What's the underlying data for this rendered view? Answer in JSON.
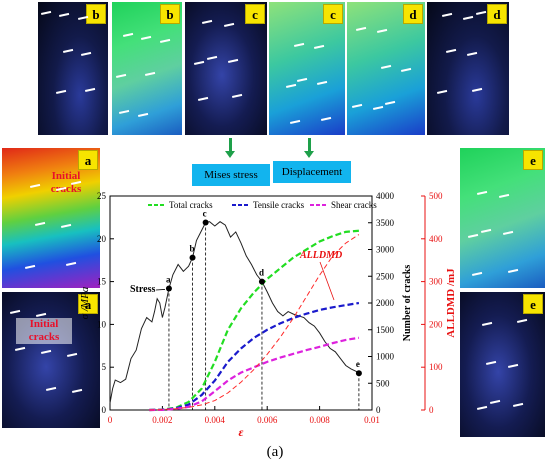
{
  "panels": {
    "top": [
      "b",
      "b",
      "c",
      "c",
      "d",
      "d"
    ],
    "left": [
      "a",
      "a"
    ],
    "right": [
      "e",
      "e"
    ]
  },
  "labels": {
    "mises": "Mises stress",
    "displacement": "Displacement",
    "initial_cracks": [
      "Initial",
      "cracks"
    ]
  },
  "caption": "(a)",
  "chart_data": {
    "type": "line",
    "xlabel": "ε",
    "ylabel": "σ /MPa",
    "y2label": "Number of cracks",
    "y3label": "ALLDMD /mJ",
    "xlim": [
      0,
      0.01
    ],
    "ylim": [
      0,
      25
    ],
    "y2lim": [
      0,
      4000
    ],
    "y3lim": [
      0,
      500
    ],
    "xticks": [
      "0",
      "0.002",
      "0.004",
      "0.006",
      "0.008",
      "0.01"
    ],
    "yticks": [
      "0",
      "5",
      "10",
      "15",
      "20",
      "25"
    ],
    "y2ticks": [
      "0",
      "500",
      "1000",
      "1500",
      "2000",
      "2500",
      "3000",
      "3500",
      "4000"
    ],
    "y3ticks": [
      "0",
      "100",
      "200",
      "300",
      "400",
      "500"
    ],
    "legend": [
      "Total cracks",
      "Tensile cracks",
      "Shear cracks"
    ],
    "stress_label": "Stress",
    "alldmd_label": "ALLDMD",
    "colors": {
      "stress": "#222222",
      "total": "#22dd22",
      "tensile": "#1a1acc",
      "shear": "#dd22dd",
      "alldmd": "#ff2a2a"
    },
    "series": [
      {
        "name": "Stress",
        "axis": "left",
        "x": [
          0,
          0.0001,
          0.0002,
          0.0004,
          0.0006,
          0.0008,
          0.001,
          0.0012,
          0.0014,
          0.0016,
          0.0017,
          0.0018,
          0.0019,
          0.002,
          0.0021,
          0.00225,
          0.0024,
          0.0026,
          0.0028,
          0.003,
          0.00315,
          0.0033,
          0.0035,
          0.00365,
          0.0038,
          0.004,
          0.0042,
          0.0044,
          0.0046,
          0.0048,
          0.005,
          0.0052,
          0.0054,
          0.0056,
          0.0058,
          0.006,
          0.0062,
          0.0064,
          0.0066,
          0.0068,
          0.007,
          0.0072,
          0.0074,
          0.0076,
          0.0078,
          0.008,
          0.0082,
          0.0084,
          0.0086,
          0.0088,
          0.009,
          0.0092,
          0.0094,
          0.0095
        ],
        "y": [
          0.8,
          2.5,
          3.5,
          3.2,
          3.6,
          6.0,
          7.0,
          9.5,
          10.8,
          10.3,
          11.5,
          13.0,
          12.5,
          10.8,
          12.0,
          14.2,
          15.8,
          17.0,
          16.2,
          16.8,
          17.8,
          19.8,
          21.0,
          21.9,
          22.0,
          21.5,
          22.0,
          21.6,
          20.2,
          20.8,
          19.5,
          18.0,
          17.0,
          15.8,
          15.0,
          13.8,
          12.5,
          11.5,
          11.0,
          11.5,
          11.2,
          11.0,
          10.8,
          10.2,
          9.8,
          9.0,
          8.0,
          7.2,
          6.8,
          6.0,
          5.2,
          4.8,
          4.5,
          4.3
        ]
      },
      {
        "name": "Total cracks",
        "axis": "right",
        "x": [
          0.0015,
          0.002,
          0.0025,
          0.003,
          0.0035,
          0.004,
          0.0045,
          0.005,
          0.0055,
          0.006,
          0.0065,
          0.007,
          0.0075,
          0.008,
          0.0085,
          0.009,
          0.0095
        ],
        "y": [
          0,
          10,
          40,
          150,
          400,
          900,
          1500,
          1900,
          2200,
          2450,
          2650,
          2850,
          3000,
          3150,
          3250,
          3330,
          3350
        ]
      },
      {
        "name": "Tensile cracks",
        "axis": "right",
        "x": [
          0.0015,
          0.002,
          0.0025,
          0.003,
          0.0035,
          0.004,
          0.0045,
          0.005,
          0.0055,
          0.006,
          0.0065,
          0.007,
          0.0075,
          0.008,
          0.0085,
          0.009,
          0.0095
        ],
        "y": [
          0,
          5,
          30,
          100,
          280,
          550,
          900,
          1150,
          1350,
          1500,
          1620,
          1720,
          1800,
          1870,
          1920,
          1960,
          2000
        ]
      },
      {
        "name": "Shear cracks",
        "axis": "right",
        "x": [
          0.0015,
          0.002,
          0.0025,
          0.003,
          0.0035,
          0.004,
          0.0045,
          0.005,
          0.0055,
          0.006,
          0.0065,
          0.007,
          0.0075,
          0.008,
          0.0085,
          0.009,
          0.0095
        ],
        "y": [
          0,
          3,
          20,
          60,
          160,
          350,
          550,
          700,
          800,
          900,
          980,
          1050,
          1120,
          1180,
          1250,
          1310,
          1350
        ]
      },
      {
        "name": "ALLDMD",
        "axis": "right2",
        "x": [
          0.0015,
          0.002,
          0.0025,
          0.003,
          0.0035,
          0.004,
          0.0045,
          0.005,
          0.0055,
          0.006,
          0.0065,
          0.007,
          0.0075,
          0.008,
          0.0085,
          0.009,
          0.0095
        ],
        "y": [
          0,
          1,
          3,
          6,
          12,
          22,
          40,
          65,
          95,
          130,
          170,
          215,
          265,
          315,
          360,
          390,
          410
        ]
      }
    ],
    "stage_points": [
      {
        "label": "a",
        "x": 0.00225,
        "y": 14.2
      },
      {
        "label": "b",
        "x": 0.00315,
        "y": 17.8
      },
      {
        "label": "c",
        "x": 0.00365,
        "y": 21.9
      },
      {
        "label": "d",
        "x": 0.0058,
        "y": 15.0
      },
      {
        "label": "e",
        "x": 0.0095,
        "y": 4.3
      }
    ]
  }
}
